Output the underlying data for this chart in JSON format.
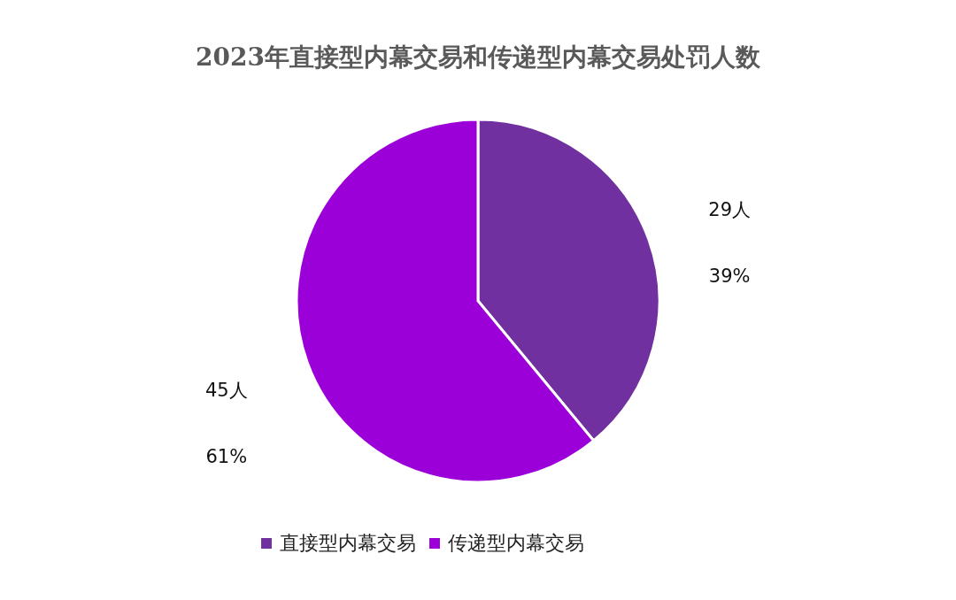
{
  "chart_data": {
    "type": "pie",
    "title": "2023年直接型内幕交易和传递型内幕交易处罚人数",
    "categories": [
      "直接型内幕交易",
      "传递型内幕交易"
    ],
    "values": [
      39,
      61
    ],
    "colors": [
      "#7030a0",
      "#9b00d9"
    ],
    "value_labels": [
      "29人\n39%",
      "45人\n61%"
    ],
    "legend": "bottom"
  }
}
